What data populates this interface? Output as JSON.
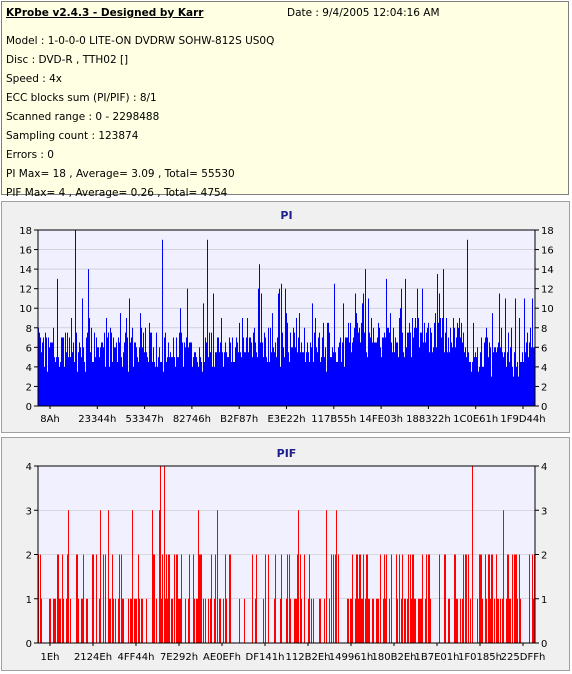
{
  "header": {
    "app_title": "KProbe v2.4.3 - Designed by Karr",
    "date": "Date : 9/4/2005 12:04:16 AM",
    "lines": [
      "Model : 1-0-0-0 LITE-ON DVDRW SOHW-812S  US0Q",
      "Disc : DVD-R , TTH02 []",
      "Speed : 4x",
      "ECC blocks sum (PI/PIF) : 8/1",
      "Scanned range : 0 - 2298488",
      "Sampling count : 123874",
      "Errors : 0",
      "PI Max= 18 , Average= 3.09 , Total= 55530",
      "PIF Max= 4 , Average= 0.26 , Total= 4754"
    ]
  },
  "chart_data": [
    {
      "type": "bar",
      "title": "PI",
      "ylim": [
        0,
        18
      ],
      "yticks": [
        0,
        2,
        4,
        6,
        8,
        10,
        12,
        14,
        16,
        18
      ],
      "xtick_labels": [
        "8Ah",
        "23344h",
        "53347h",
        "82746h",
        "B2F87h",
        "E3E22h",
        "117B55h",
        "14FE03h",
        "188322h",
        "1C0E61h",
        "1F9D44h"
      ],
      "x_range": [
        0,
        2298488
      ],
      "grid": true,
      "bar_color": "#0000ff",
      "peak_values": [
        {
          "at": 0.075,
          "value": 18
        },
        {
          "at": 0.25,
          "value": 17
        },
        {
          "at": 0.34,
          "value": 17
        },
        {
          "at": 0.865,
          "value": 17
        },
        {
          "at": 0.3,
          "value": 12
        },
        {
          "at": 0.1,
          "value": 14
        }
      ]
    },
    {
      "type": "bar",
      "title": "PIF",
      "ylim": [
        0,
        4
      ],
      "yticks": [
        0,
        1,
        2,
        3,
        4
      ],
      "xtick_labels": [
        "1Eh",
        "2124Eh",
        "4FF44h",
        "7E292h",
        "AE0EFh",
        "DF141h",
        "112B2Eh",
        "149961h",
        "180B2Eh",
        "1B7E01h",
        "1F0185h",
        "225DFFh"
      ],
      "x_range": [
        0,
        2298488
      ],
      "grid": true,
      "bar_color": "#ff0000",
      "peak_values": [
        {
          "at": 0.245,
          "value": 4
        },
        {
          "at": 0.255,
          "value": 4
        },
        {
          "at": 0.875,
          "value": 4
        },
        {
          "at": 0.06,
          "value": 3
        },
        {
          "at": 0.125,
          "value": 3
        },
        {
          "at": 0.23,
          "value": 3
        },
        {
          "at": 0.36,
          "value": 3
        },
        {
          "at": 0.58,
          "value": 3
        }
      ]
    }
  ]
}
